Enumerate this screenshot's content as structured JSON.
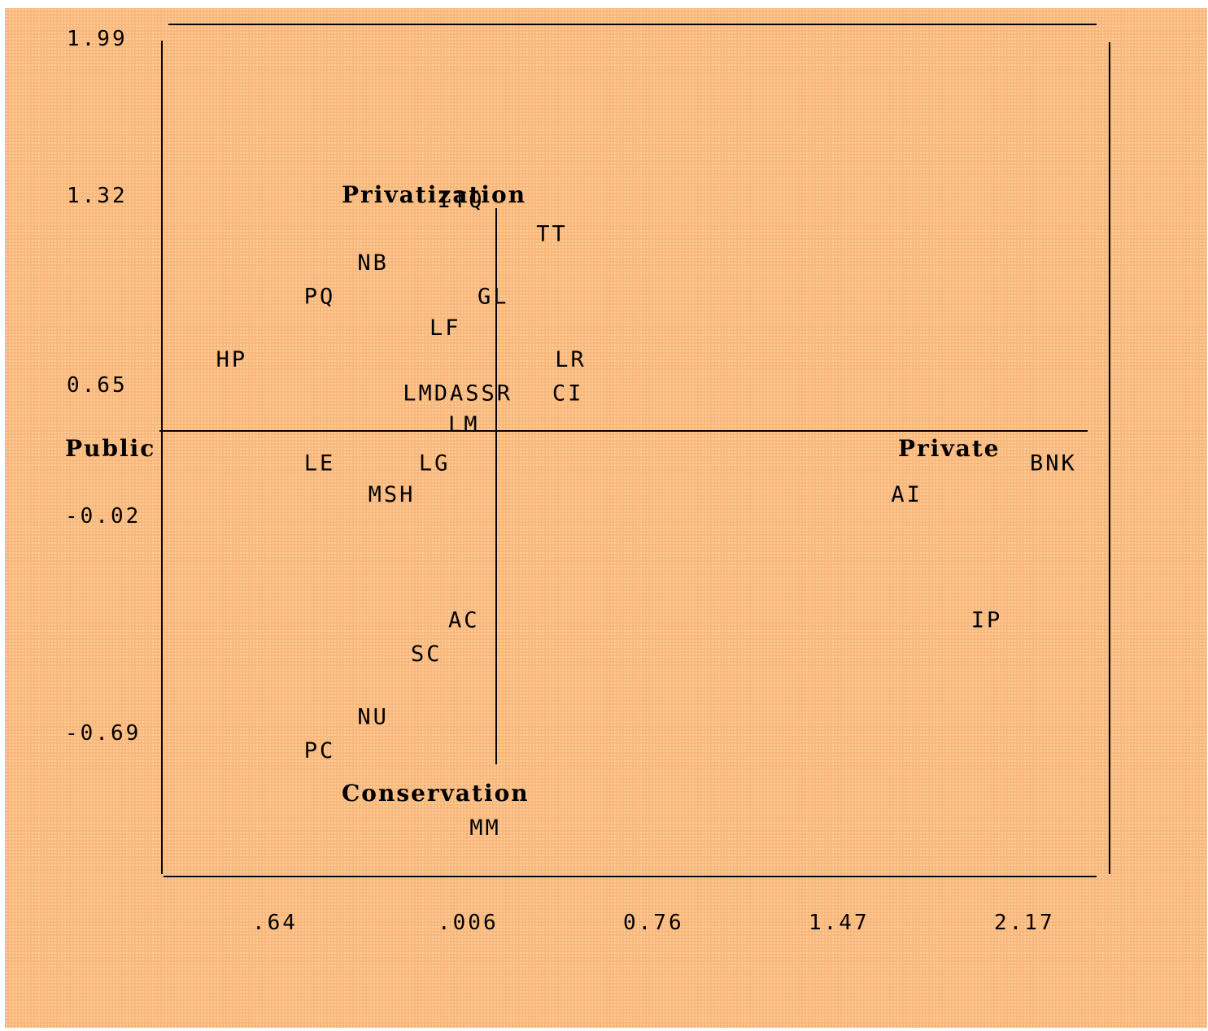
{
  "chart_data": {
    "type": "scatter",
    "title": "",
    "xlabel": "",
    "ylabel": "",
    "x_tick_labels": [
      ".64",
      ".006",
      "0.76",
      "1.47",
      "2.17"
    ],
    "y_tick_labels": [
      "1.99",
      "1.32",
      "0.65",
      "-0.02",
      "-0.69"
    ],
    "annotations": {
      "top": "Privatization",
      "bottom": "Conservation",
      "left": "Public",
      "right": "Private"
    },
    "points": [
      {
        "label": "ITQ",
        "x": -0.22,
        "y": 1.18
      },
      {
        "label": "TT",
        "x": 0.15,
        "y": 1.04
      },
      {
        "label": "NB",
        "x": -0.52,
        "y": 0.92
      },
      {
        "label": "PQ",
        "x": -0.72,
        "y": 0.78
      },
      {
        "label": "GL",
        "x": -0.07,
        "y": 0.78
      },
      {
        "label": "LF",
        "x": -0.25,
        "y": 0.65
      },
      {
        "label": "HP",
        "x": -1.05,
        "y": 0.52
      },
      {
        "label": "LR",
        "x": 0.22,
        "y": 0.52
      },
      {
        "label": "LMDASSR",
        "x": -0.35,
        "y": 0.38
      },
      {
        "label": "CI",
        "x": 0.21,
        "y": 0.38
      },
      {
        "label": "LM",
        "x": -0.18,
        "y": 0.25
      },
      {
        "label": "LE",
        "x": -0.72,
        "y": 0.09
      },
      {
        "label": "LG",
        "x": -0.29,
        "y": 0.09
      },
      {
        "label": "BNK",
        "x": 2.0,
        "y": 0.09
      },
      {
        "label": "MSH",
        "x": -0.48,
        "y": -0.04
      },
      {
        "label": "AI",
        "x": 1.48,
        "y": -0.04
      },
      {
        "label": "AC",
        "x": -0.18,
        "y": -0.56
      },
      {
        "label": "IP",
        "x": 1.78,
        "y": -0.56
      },
      {
        "label": "SC",
        "x": -0.32,
        "y": -0.7
      },
      {
        "label": "NU",
        "x": -0.52,
        "y": -0.96
      },
      {
        "label": "PC",
        "x": -0.72,
        "y": -1.1
      },
      {
        "label": "MM",
        "x": -0.1,
        "y": -1.42
      }
    ],
    "grid": false,
    "legend": "none"
  },
  "colors": {
    "background": "#f9b87a",
    "ink": "#000000"
  }
}
